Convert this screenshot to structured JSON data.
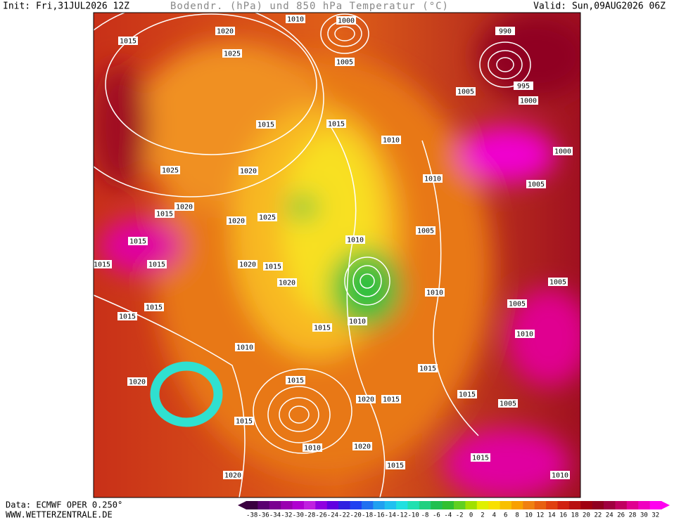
{
  "header": {
    "init": "Init: Fri,31JUL2026 12Z",
    "title": "Bodendr. (hPa) und 850 hPa Temperatur (°C)",
    "valid": "Valid: Sun,09AUG2026 06Z"
  },
  "footer": {
    "data": "Data: ECMWF OPER 0.250°",
    "site": "WWW.WETTERZENTRALE.DE"
  },
  "colorbar": {
    "ticks": [
      -38,
      -36,
      -34,
      -32,
      -30,
      -28,
      -26,
      -24,
      -22,
      -20,
      -18,
      -16,
      -14,
      -12,
      -10,
      -8,
      -6,
      -4,
      -2,
      0,
      2,
      4,
      6,
      8,
      10,
      12,
      14,
      16,
      18,
      20,
      22,
      24,
      26,
      28,
      30,
      32
    ],
    "colors": [
      "#3a0040",
      "#5a0070",
      "#7a0090",
      "#9a00b0",
      "#b000d0",
      "#c020e0",
      "#9000e0",
      "#6000e0",
      "#3020e0",
      "#2040f0",
      "#2070f0",
      "#20a0f0",
      "#20c0f0",
      "#20e0e0",
      "#20e0b0",
      "#20d080",
      "#20c050",
      "#30c030",
      "#60d020",
      "#a0e000",
      "#e0f000",
      "#f8e000",
      "#f8c000",
      "#f8a000",
      "#f08010",
      "#e86010",
      "#e04010",
      "#d02010",
      "#b81010",
      "#a00010",
      "#900020",
      "#a00040",
      "#c00060",
      "#e00090",
      "#f000c0",
      "#ff00f0"
    ]
  },
  "isobar_labels": [
    "1015",
    "1020",
    "1010",
    "1000",
    "1005",
    "1025",
    "990",
    "995",
    "1005",
    "1000",
    "1015",
    "1015",
    "1010",
    "1025",
    "1020",
    "1010",
    "1020",
    "1015",
    "1020",
    "1025",
    "1005",
    "1015",
    "1015",
    "1015",
    "1015",
    "1020",
    "1020",
    "1010",
    "1010",
    "1015",
    "1015",
    "1010",
    "1015",
    "1005",
    "1005",
    "1010",
    "1010",
    "1015",
    "1015",
    "1020",
    "1020",
    "1015",
    "1015",
    "1005",
    "1015",
    "1010",
    "1020",
    "1015",
    "1015",
    "1020",
    "1010",
    "1000",
    "1005"
  ]
}
